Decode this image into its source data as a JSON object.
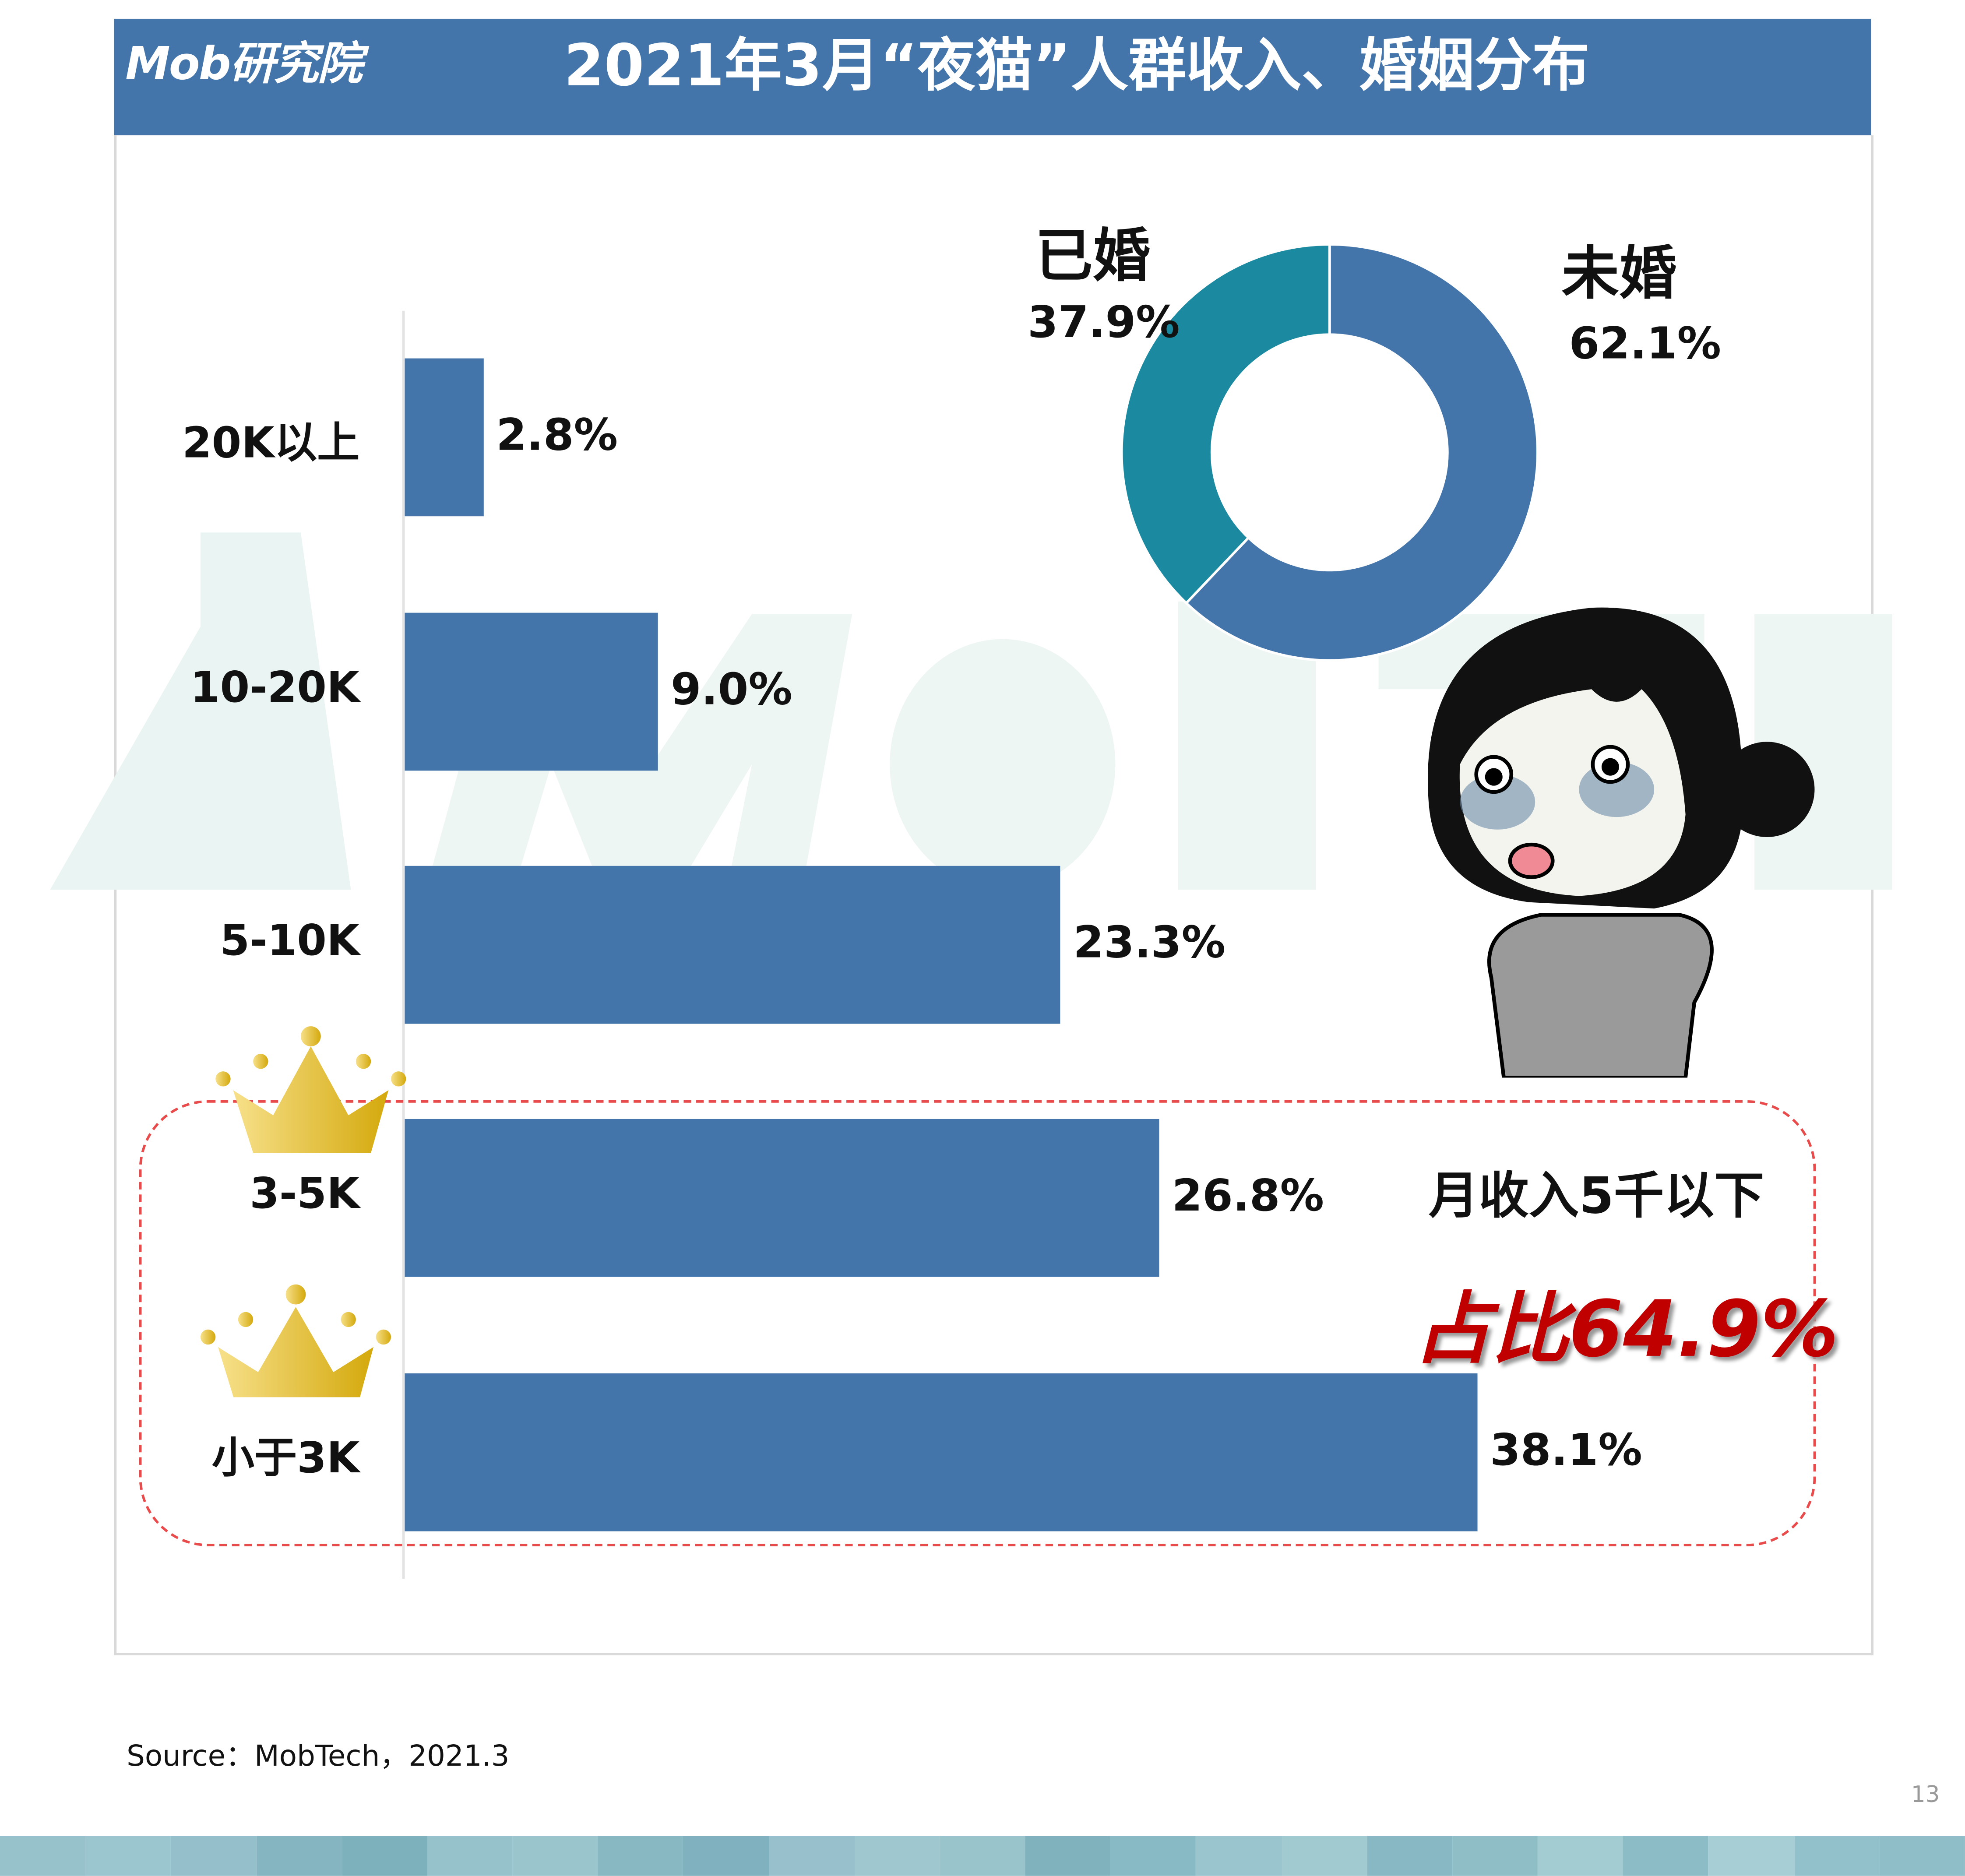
{
  "header": {
    "logo_text": "Mob研究院",
    "title": "2021年3月“夜猫”人群收入、婚姻分布",
    "background": "#4475aa"
  },
  "watermark": "MobTech",
  "chart_data": [
    {
      "type": "bar",
      "orientation": "horizontal",
      "categories": [
        "20K以上",
        "10-20K",
        "5-10K",
        "3-5K",
        "小于3K"
      ],
      "values": [
        2.8,
        9.0,
        23.3,
        26.8,
        38.1
      ],
      "labels": [
        "2.8%",
        "9.0%",
        "23.3%",
        "26.8%",
        "38.1%"
      ],
      "unit": "%",
      "color": "#4475aa",
      "grid": false,
      "highlight": {
        "categories": [
          "3-5K",
          "小于3K"
        ],
        "text": "月收入5千以下",
        "total": "占比64.9%"
      }
    },
    {
      "type": "pie",
      "donut": true,
      "categories": [
        "未婚",
        "已婚"
      ],
      "values": [
        62.1,
        37.9
      ],
      "labels": [
        "62.1%",
        "37.9%"
      ],
      "colors": [
        "#4475aa",
        "#1b8aa0"
      ]
    }
  ],
  "footer": {
    "source": "Source：MobTech，2021.3",
    "page": "13"
  }
}
